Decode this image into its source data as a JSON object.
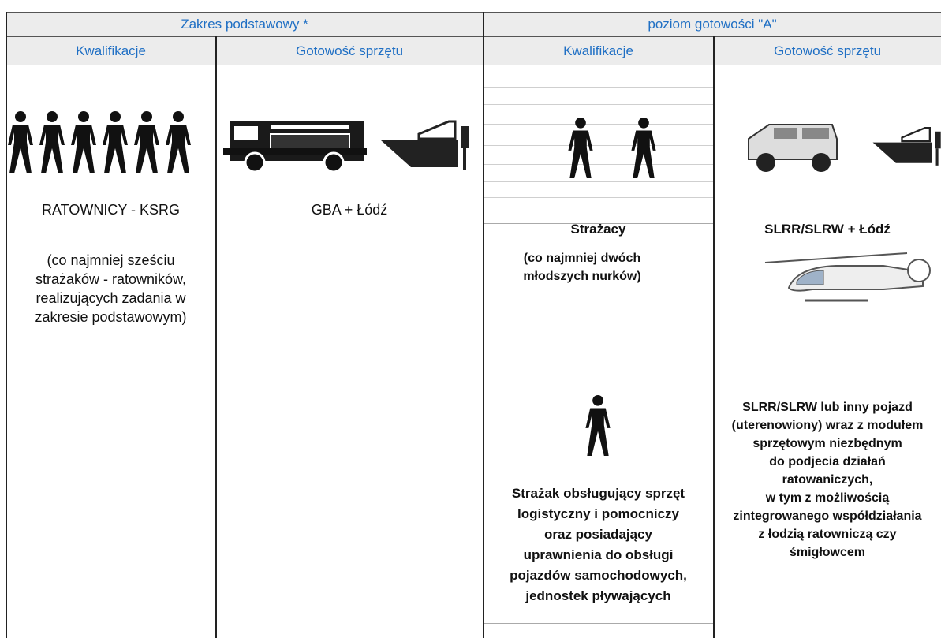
{
  "header": {
    "groups": [
      "Zakres podstawowy *",
      "poziom gotowości \"A\""
    ],
    "columns": [
      "Kwalifikacje",
      "Gotowość sprzętu",
      "Kwalifikacje",
      "Gotowość sprzętu"
    ]
  },
  "cells": [
    {
      "label": "RATOWNICY - KSRG",
      "note": [
        "(co najmniej sześciu",
        "strażaków - ratowników,",
        "realizujących zadania w",
        "zakresie podstawowym)"
      ]
    },
    {
      "label": "GBA + Łódź"
    },
    {
      "label": "Strażacy",
      "note": [
        "(co najmniej dwóch",
        "młodszych nurków)"
      ],
      "extra": [
        "Strażak obsługujący sprzęt",
        "logistyczny i pomocniczy",
        "oraz posiadający",
        "uprawnienia do obsługi",
        "pojazdów samochodowych,",
        "jednostek pływających"
      ]
    },
    {
      "label": "SLRR/SLRW + Łódź",
      "extra": [
        "SLRR/SLRW lub inny pojazd",
        "(uterenowiony) wraz z modułem",
        "sprzętowym niezbędnym",
        "do podjecia działań",
        "ratowaniczych,",
        "w tym z możliwością",
        "zintegrowanego współdziałania",
        "z łodzią ratowniczą czy",
        "śmigłowcem"
      ]
    }
  ]
}
